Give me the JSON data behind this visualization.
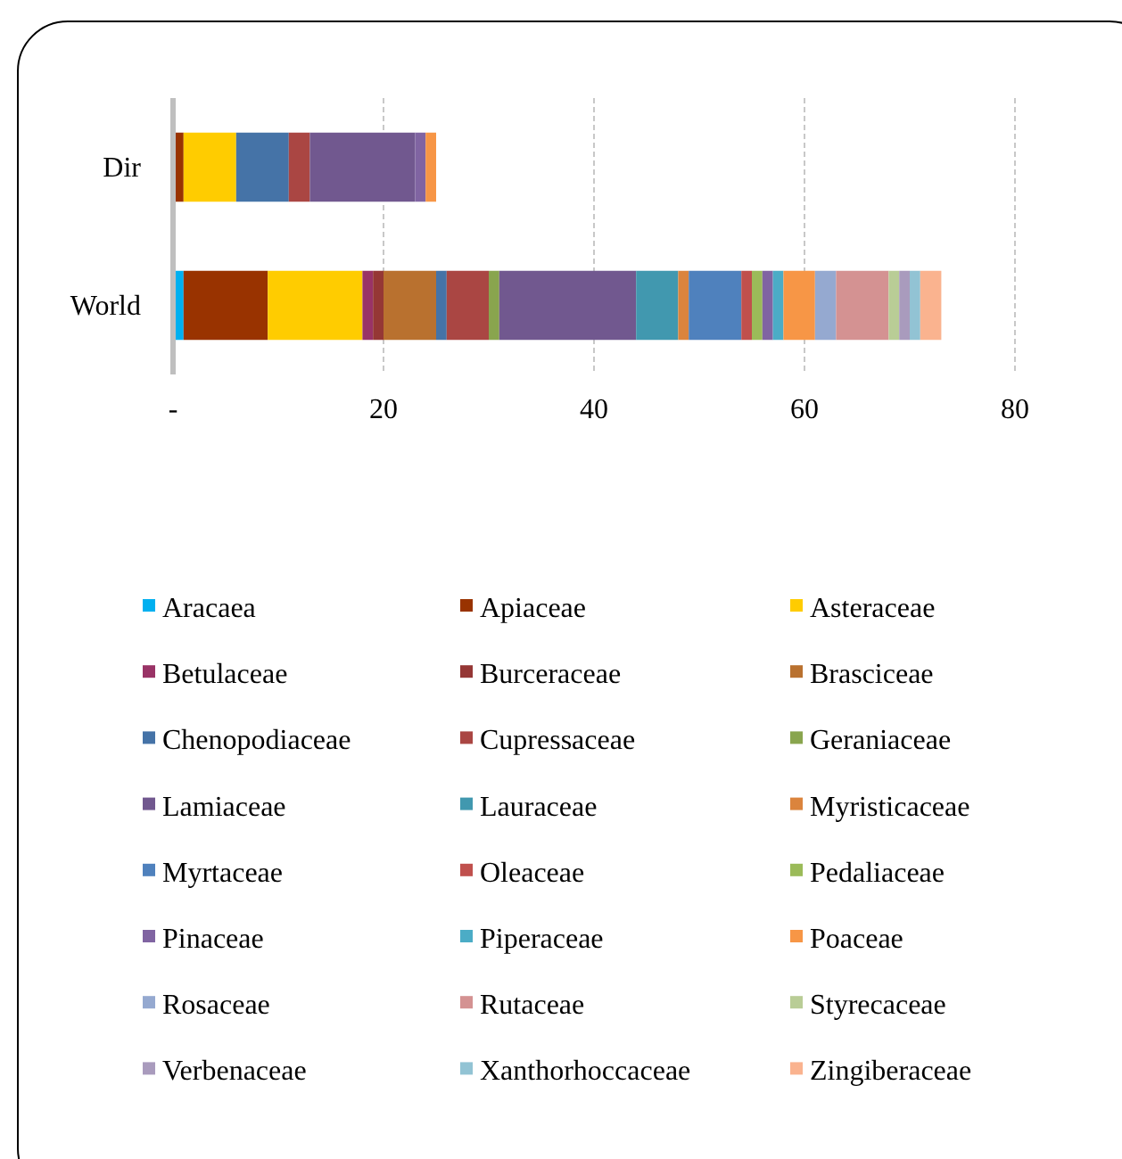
{
  "chart_data": {
    "type": "bar",
    "orientation": "horizontal",
    "stacked": true,
    "categories": [
      "Dir",
      "World"
    ],
    "xlim": [
      0,
      80
    ],
    "xticks": [
      {
        "value": 0,
        "label": "-"
      },
      20,
      40,
      60,
      80
    ],
    "grid": "x",
    "legend": "bottom",
    "series": [
      {
        "name": "Aracaea",
        "color": "#00b0f0",
        "values": [
          0,
          1
        ]
      },
      {
        "name": "Apiaceae",
        "color": "#993300",
        "values": [
          1,
          8
        ]
      },
      {
        "name": "Asteraceae",
        "color": "#ffcc00",
        "values": [
          5,
          9
        ]
      },
      {
        "name": "Betulaceae",
        "color": "#993366",
        "values": [
          0,
          1
        ]
      },
      {
        "name": "Burceraceae",
        "color": "#953735",
        "values": [
          0,
          1
        ]
      },
      {
        "name": "Brasciceae",
        "color": "#b9712f",
        "values": [
          0,
          5
        ]
      },
      {
        "name": "Chenopodiaceae",
        "color": "#4573a7",
        "values": [
          5,
          1
        ]
      },
      {
        "name": "Cupressaceae",
        "color": "#aa4643",
        "values": [
          2,
          4
        ]
      },
      {
        "name": "Geraniaceae",
        "color": "#89a54e",
        "values": [
          0,
          1
        ]
      },
      {
        "name": "Lamiaceae",
        "color": "#71588f",
        "values": [
          10,
          13
        ]
      },
      {
        "name": "Lauraceae",
        "color": "#4198af",
        "values": [
          0,
          4
        ]
      },
      {
        "name": "Myristicaceae",
        "color": "#db843d",
        "values": [
          0,
          1
        ]
      },
      {
        "name": "Myrtaceae",
        "color": "#4f81bd",
        "values": [
          0,
          5
        ]
      },
      {
        "name": "Oleaceae",
        "color": "#c0504d",
        "values": [
          0,
          1
        ]
      },
      {
        "name": "Pedaliaceae",
        "color": "#9bbb59",
        "values": [
          0,
          1
        ]
      },
      {
        "name": "Pinaceae",
        "color": "#8064a2",
        "values": [
          1,
          1
        ]
      },
      {
        "name": "Piperaceae",
        "color": "#4bacc6",
        "values": [
          0,
          1
        ]
      },
      {
        "name": "Poaceae",
        "color": "#f79646",
        "values": [
          1,
          3
        ]
      },
      {
        "name": "Rosaceae",
        "color": "#95a9d0",
        "values": [
          0,
          2
        ]
      },
      {
        "name": "Rutaceae",
        "color": "#d49292",
        "values": [
          0,
          5
        ]
      },
      {
        "name": "Styrecaceae",
        "color": "#b9cd96",
        "values": [
          0,
          1
        ]
      },
      {
        "name": "Verbenaceae",
        "color": "#a99bbd",
        "values": [
          0,
          1
        ]
      },
      {
        "name": "Xanthorhoccaceae",
        "color": "#92c3d4",
        "values": [
          0,
          1
        ]
      },
      {
        "name": "Zingiberaceae",
        "color": "#fab38f",
        "values": [
          0,
          2
        ]
      }
    ]
  }
}
